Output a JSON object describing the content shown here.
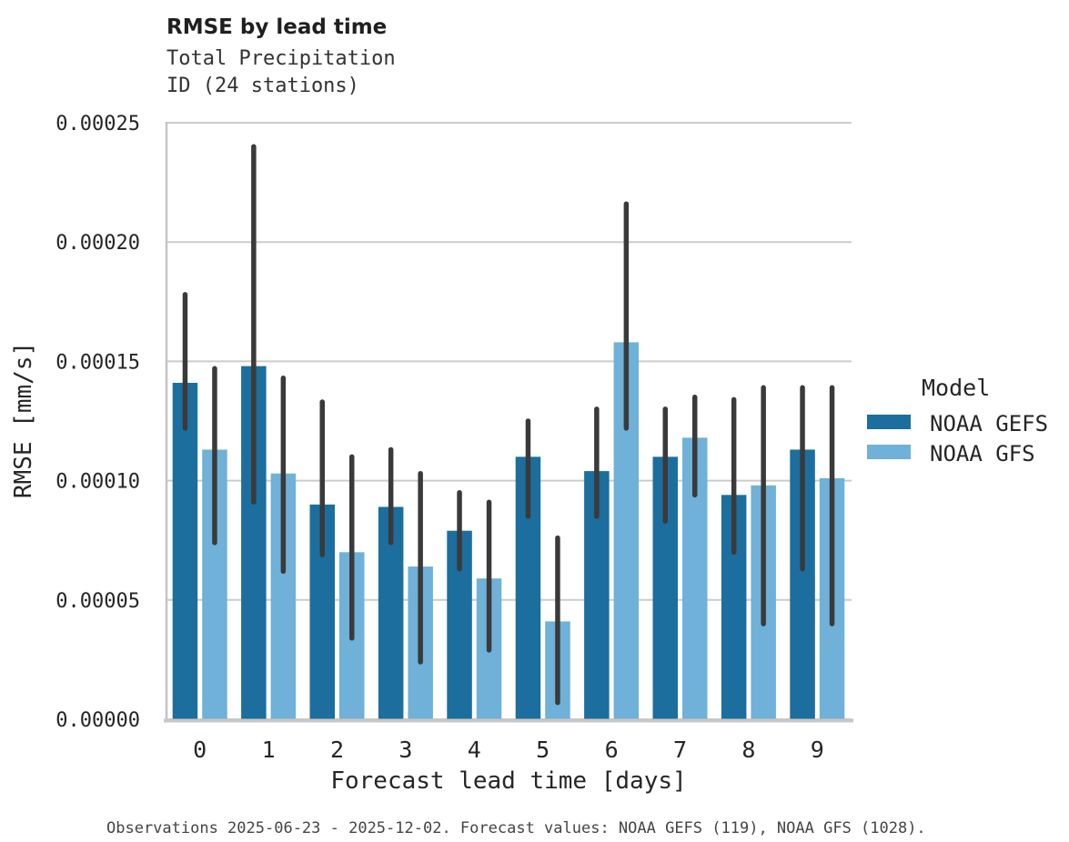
{
  "header": {
    "title": "RMSE by lead time",
    "subtitle_line1": "Total Precipitation",
    "subtitle_line2": "ID (24 stations)"
  },
  "caption": "Observations 2025-06-23 - 2025-12-02. Forecast values: NOAA GEFS (119), NOAA GFS (1028).",
  "legend": {
    "title": "Model",
    "entries": [
      {
        "label": "NOAA GEFS",
        "color": "#1c6e9e"
      },
      {
        "label": "NOAA GFS",
        "color": "#6fb1d8"
      }
    ]
  },
  "colors": {
    "gefs_bar": "#1c6e9e",
    "gfs_bar": "#6fb1d8",
    "error_bar": "#3a3a3a",
    "gridline": "#cccccc",
    "spine": "#c4c4c4",
    "baseline": "#c8c8c8"
  },
  "chart_data": {
    "type": "bar",
    "title": "RMSE by lead time",
    "subtitle": [
      "Total Precipitation",
      "ID (24 stations)"
    ],
    "xlabel": "Forecast lead time [days]",
    "ylabel": "RMSE [mm/s]",
    "categories": [
      "0",
      "1",
      "2",
      "3",
      "4",
      "5",
      "6",
      "7",
      "8",
      "9"
    ],
    "ylim": [
      0,
      0.00025
    ],
    "yticks": [
      {
        "value": 0.0,
        "label": "0.00000"
      },
      {
        "value": 5e-05,
        "label": "0.00005"
      },
      {
        "value": 0.0001,
        "label": "0.00010"
      },
      {
        "value": 0.00015,
        "label": "0.00015"
      },
      {
        "value": 0.0002,
        "label": "0.00020"
      },
      {
        "value": 0.00025,
        "label": "0.00025"
      }
    ],
    "grid": true,
    "legend_position": "right",
    "error_bars": true,
    "series": [
      {
        "name": "NOAA GEFS",
        "color": "#1c6e9e",
        "values": [
          0.000141,
          0.000148,
          9e-05,
          8.9e-05,
          7.9e-05,
          0.00011,
          0.000104,
          0.00011,
          9.4e-05,
          0.000113
        ],
        "err_low": [
          0.000122,
          9.1e-05,
          6.9e-05,
          7.4e-05,
          6.3e-05,
          8.5e-05,
          8.5e-05,
          8.3e-05,
          7e-05,
          6.3e-05
        ],
        "err_high": [
          0.000178,
          0.00024,
          0.000133,
          0.000113,
          9.5e-05,
          0.000125,
          0.00013,
          0.00013,
          0.000134,
          0.000139
        ]
      },
      {
        "name": "NOAA GFS",
        "color": "#6fb1d8",
        "values": [
          0.000113,
          0.000103,
          7e-05,
          6.4e-05,
          5.9e-05,
          4.1e-05,
          0.000158,
          0.000118,
          9.8e-05,
          0.000101
        ],
        "err_low": [
          7.4e-05,
          6.2e-05,
          3.4e-05,
          2.4e-05,
          2.9e-05,
          7e-06,
          0.000122,
          9.4e-05,
          4e-05,
          4e-05
        ],
        "err_high": [
          0.000147,
          0.000143,
          0.00011,
          0.000103,
          9.1e-05,
          7.6e-05,
          0.000216,
          0.000135,
          0.000139,
          0.000139
        ]
      }
    ]
  }
}
